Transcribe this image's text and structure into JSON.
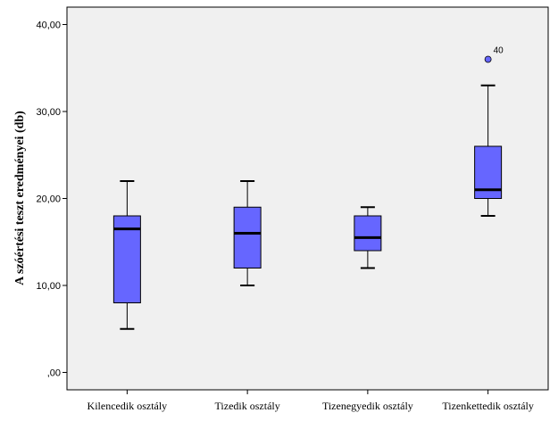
{
  "chart_data": {
    "type": "boxplot",
    "title": "",
    "xlabel": "",
    "ylabel": "A szóértési teszt eredményei (db)",
    "ylim": [
      -2,
      42
    ],
    "yticks": [
      0,
      10,
      20,
      30,
      40
    ],
    "ytick_labels": [
      ",00",
      "10,00",
      "20,00",
      "30,00",
      "40,00"
    ],
    "grid": false,
    "categories": [
      "Kilencedik osztály",
      "Tizedik osztály",
      "Tizenegyedik osztály",
      "Tizenkettedik osztály"
    ],
    "boxes": [
      {
        "min": 5,
        "q1": 8,
        "median": 16.5,
        "q3": 18,
        "max": 22,
        "outliers": []
      },
      {
        "min": 10,
        "q1": 12,
        "median": 16,
        "q3": 19,
        "max": 22,
        "outliers": []
      },
      {
        "min": 12,
        "q1": 14,
        "median": 15.5,
        "q3": 18,
        "max": 19,
        "outliers": []
      },
      {
        "min": 18,
        "q1": 20,
        "median": 21,
        "q3": 26,
        "max": 33,
        "outliers": [
          {
            "value": 36,
            "label": "40"
          }
        ]
      }
    ]
  },
  "colors": {
    "plot_background": "#f0f0f0",
    "box_fill": "#6666ff",
    "outlier_fill": "#6666ff",
    "line": "#000000"
  }
}
